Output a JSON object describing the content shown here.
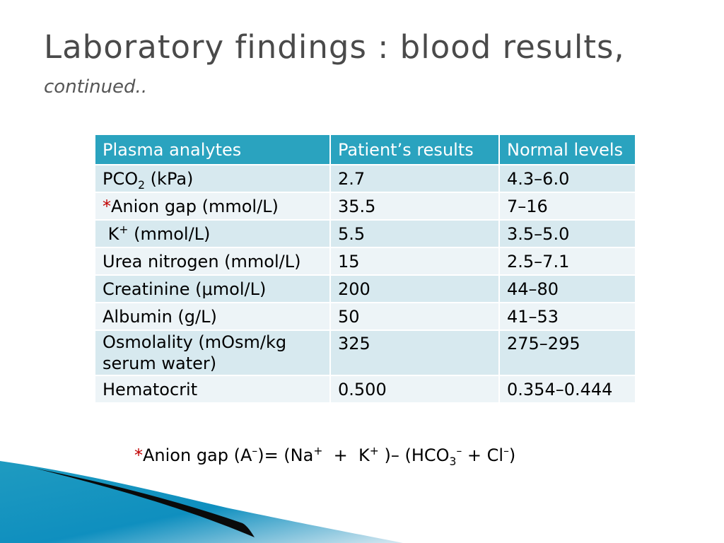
{
  "slide": {
    "title": "Laboratory findings : blood results,",
    "subtitle": "continued.."
  },
  "table": {
    "headers": [
      "Plasma analytes",
      "Patient’s results",
      "Normal levels"
    ],
    "rows": [
      {
        "analyte_base": "PCO",
        "analyte_sub": "2",
        "analyte_tail": " (kPa)",
        "result": "2.7",
        "normal": "4.3–6.0"
      },
      {
        "analyte_mark": "*",
        "analyte": "Anion gap (mmol/L)",
        "result": "35.5",
        "normal": "7–16"
      },
      {
        "analyte_base": "K",
        "analyte_sup": "+",
        "analyte_tail": " (mmol/L)",
        "result": "5.5",
        "normal": "3.5–5.0"
      },
      {
        "analyte": "Urea nitrogen (mmol/L)",
        "result": "15",
        "normal": "2.5–7.1"
      },
      {
        "analyte": "Creatinine (μmol/L)",
        "result": "200",
        "normal": "44–80"
      },
      {
        "analyte": "Albumin (g/L)",
        "result": "50",
        "normal": "41–53"
      },
      {
        "analyte": "Osmolality (mOsm/kg serum water)",
        "result": "325",
        "normal": "275–295"
      },
      {
        "analyte": "Hematocrit",
        "result": "0.500",
        "normal": "0.354–0.444"
      }
    ]
  },
  "footnote": {
    "mark": "*",
    "p1": "Anion gap (A",
    "a_sup": "–",
    "p2": ")= (Na",
    "na_sup": "+",
    "p3": "  +  K",
    "k_sup": "+",
    "p4": " )– (HCO",
    "hco3_sub": "3",
    "hco3_sup": "–",
    "p5": " + Cl",
    "cl_sup": "–",
    "p6": ")"
  },
  "colors": {
    "header_bg": "#2aa3bf",
    "row_odd": "#d7e9ef",
    "row_even": "#edf4f7",
    "accent_red": "#c00000",
    "title": "#4a4a4a",
    "decor_blue": "#1f9bc0",
    "decor_dark": "#0a0a0a"
  }
}
